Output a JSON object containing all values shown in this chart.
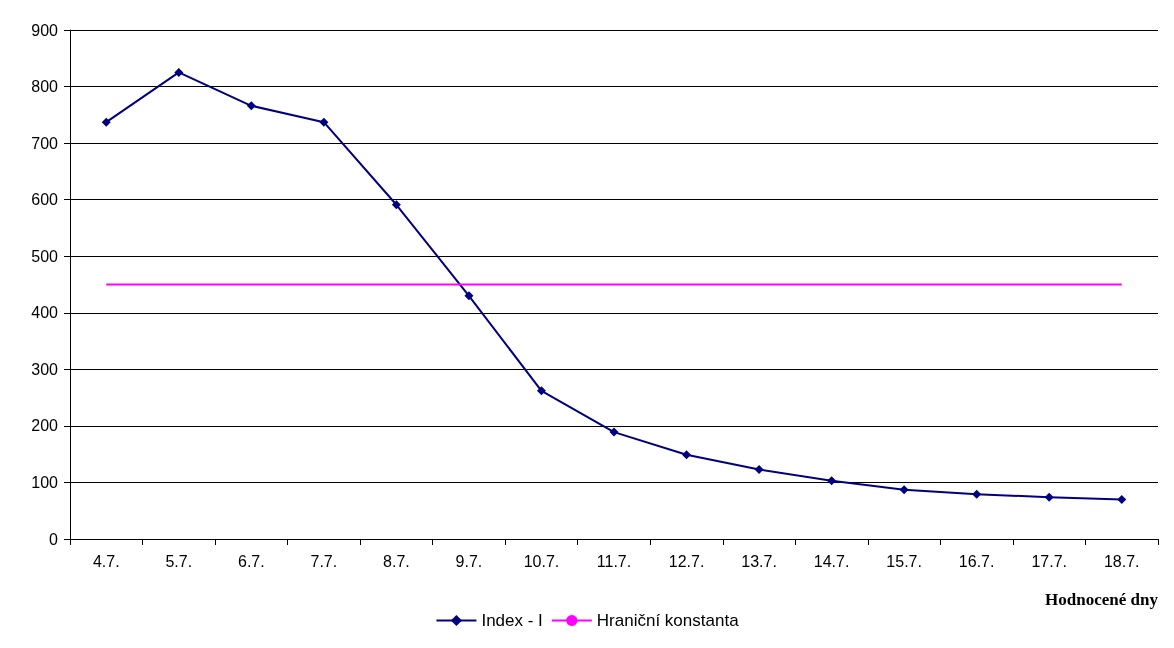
{
  "chart_data": {
    "type": "line",
    "xlabel": "Hodnocené dny",
    "categories": [
      "4.7.",
      "5.7.",
      "6.7.",
      "7.7.",
      "8.7.",
      "9.7.",
      "10.7.",
      "11.7.",
      "12.7.",
      "13.7.",
      "14.7.",
      "15.7.",
      "16.7.",
      "17.7.",
      "18.7."
    ],
    "series": [
      {
        "name": "Index - I",
        "color": "#000080",
        "marker": "diamond",
        "values": [
          737,
          825,
          766,
          737,
          591,
          430,
          262,
          189,
          149,
          123,
          103,
          87,
          79,
          74,
          70
        ]
      },
      {
        "name": "Hraniční konstanta",
        "color": "#ff00ff",
        "marker": "none",
        "values": [
          450,
          450,
          450,
          450,
          450,
          450,
          450,
          450,
          450,
          450,
          450,
          450,
          450,
          450,
          450
        ]
      }
    ],
    "ylim": [
      0,
      900
    ],
    "yticks": [
      0,
      100,
      200,
      300,
      400,
      500,
      600,
      700,
      800,
      900
    ],
    "grid": "y",
    "legend": "bottom",
    "line_style": "solid"
  }
}
